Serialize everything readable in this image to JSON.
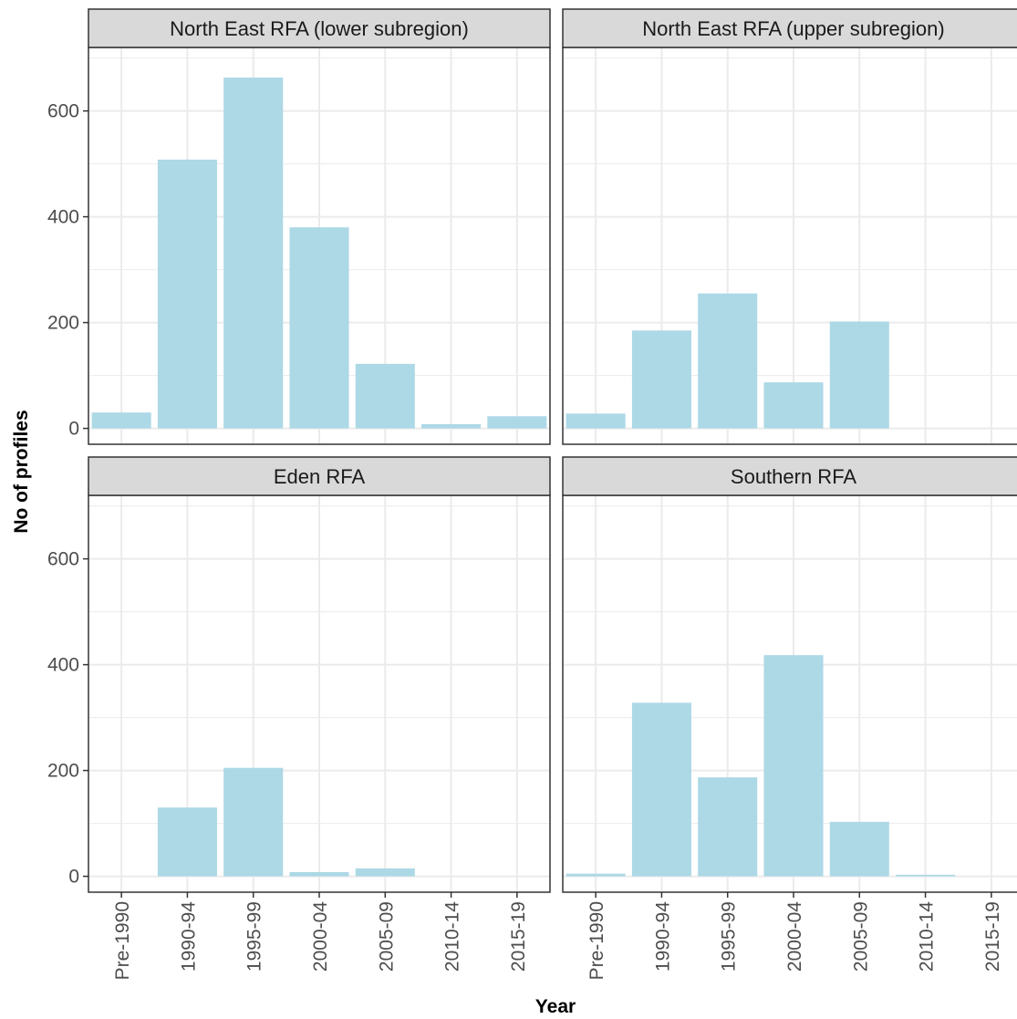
{
  "chart_data": {
    "type": "bar",
    "layout": "facet_wrap 2x2",
    "xlabel": "Year",
    "ylabel": "No of profiles",
    "categories": [
      "Pre-1990",
      "1990-94",
      "1995-99",
      "2000-04",
      "2005-09",
      "2010-14",
      "2015-19"
    ],
    "ylim": [
      -30,
      720
    ],
    "yticks": [
      0,
      200,
      400,
      600
    ],
    "grid": true,
    "legend": "none",
    "colors": {
      "bar": "#add8e6",
      "strip": "#d9d9d9",
      "grid": "#ebebeb",
      "panel_border": "#333333"
    },
    "panels": [
      {
        "title": "North East RFA (lower subregion)",
        "values": [
          30,
          508,
          663,
          380,
          122,
          8,
          23
        ]
      },
      {
        "title": "North East RFA (upper subregion)",
        "values": [
          28,
          185,
          255,
          87,
          202,
          0,
          0
        ]
      },
      {
        "title": "Eden RFA",
        "values": [
          0,
          130,
          205,
          8,
          15,
          0,
          0
        ]
      },
      {
        "title": "Southern RFA",
        "values": [
          5,
          328,
          187,
          418,
          103,
          3,
          0
        ]
      }
    ]
  }
}
